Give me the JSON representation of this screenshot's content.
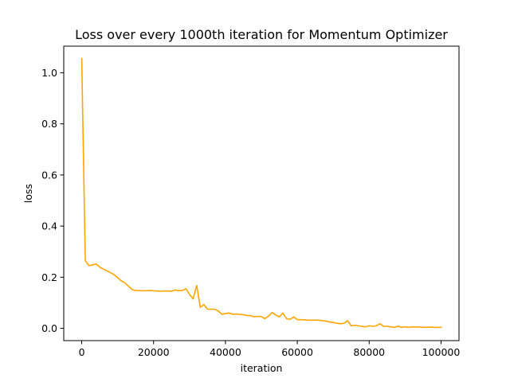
{
  "chart_data": {
    "type": "line",
    "title": "Loss over every 1000th iteration for Momentum Optimizer",
    "xlabel": "iteration",
    "ylabel": "loss",
    "xlim": [
      -5000,
      105000
    ],
    "ylim": [
      -0.048,
      1.104
    ],
    "xticks": [
      0,
      20000,
      40000,
      60000,
      80000,
      100000
    ],
    "xtick_labels": [
      "0",
      "20000",
      "40000",
      "60000",
      "80000",
      "100000"
    ],
    "yticks": [
      0.0,
      0.2,
      0.4,
      0.6,
      0.8,
      1.0
    ],
    "ytick_labels": [
      "0.0",
      "0.2",
      "0.4",
      "0.6",
      "0.8",
      "1.0"
    ],
    "grid": false,
    "legend": "none",
    "series": [
      {
        "color": "#FFA500",
        "x": [
          0,
          1000,
          2000,
          3000,
          4000,
          5000,
          6000,
          7000,
          8000,
          9000,
          10000,
          11000,
          12000,
          13000,
          14000,
          15000,
          16000,
          17000,
          18000,
          19000,
          20000,
          21000,
          22000,
          23000,
          24000,
          25000,
          26000,
          27000,
          28000,
          29000,
          30000,
          31000,
          32000,
          33000,
          34000,
          35000,
          36000,
          37000,
          38000,
          39000,
          40000,
          41000,
          42000,
          43000,
          44000,
          45000,
          46000,
          47000,
          48000,
          49000,
          50000,
          51000,
          52000,
          53000,
          54000,
          55000,
          56000,
          57000,
          58000,
          59000,
          60000,
          61000,
          62000,
          63000,
          64000,
          65000,
          66000,
          67000,
          68000,
          69000,
          70000,
          71000,
          72000,
          73000,
          74000,
          75000,
          76000,
          77000,
          78000,
          79000,
          80000,
          81000,
          82000,
          83000,
          84000,
          85000,
          86000,
          87000,
          88000,
          89000,
          90000,
          91000,
          92000,
          93000,
          94000,
          95000,
          96000,
          97000,
          98000,
          99000,
          100000
        ],
        "y": [
          1.055,
          0.265,
          0.245,
          0.248,
          0.252,
          0.24,
          0.232,
          0.225,
          0.218,
          0.21,
          0.198,
          0.186,
          0.178,
          0.165,
          0.152,
          0.148,
          0.148,
          0.147,
          0.147,
          0.148,
          0.147,
          0.146,
          0.145,
          0.146,
          0.146,
          0.145,
          0.15,
          0.148,
          0.148,
          0.155,
          0.133,
          0.115,
          0.168,
          0.082,
          0.093,
          0.075,
          0.075,
          0.075,
          0.068,
          0.055,
          0.058,
          0.06,
          0.055,
          0.056,
          0.055,
          0.053,
          0.05,
          0.05,
          0.045,
          0.047,
          0.046,
          0.038,
          0.048,
          0.062,
          0.052,
          0.045,
          0.06,
          0.038,
          0.035,
          0.045,
          0.034,
          0.034,
          0.033,
          0.032,
          0.032,
          0.032,
          0.032,
          0.03,
          0.028,
          0.025,
          0.023,
          0.02,
          0.018,
          0.02,
          0.03,
          0.01,
          0.012,
          0.01,
          0.008,
          0.006,
          0.01,
          0.008,
          0.01,
          0.018,
          0.008,
          0.008,
          0.006,
          0.004,
          0.008,
          0.004,
          0.006,
          0.004,
          0.006,
          0.005,
          0.005,
          0.004,
          0.004,
          0.005,
          0.004,
          0.004,
          0.004
        ]
      }
    ]
  }
}
